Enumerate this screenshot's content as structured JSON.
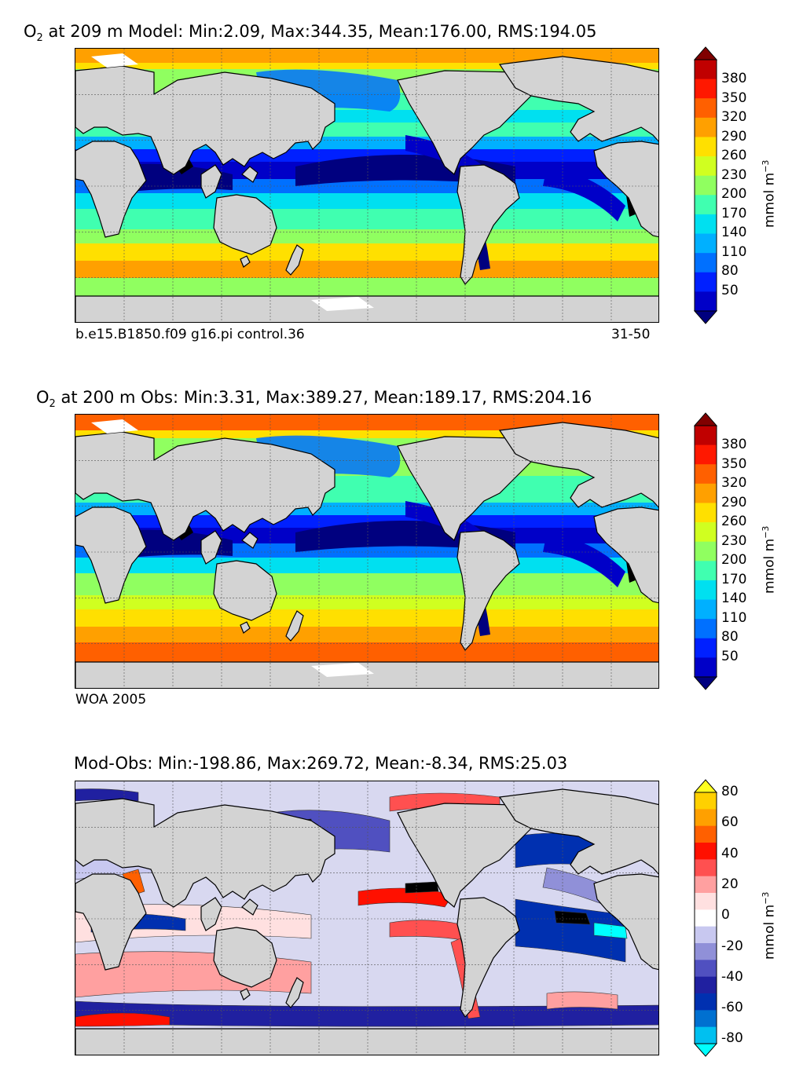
{
  "panels": [
    {
      "title_prefix": "O",
      "title_sub": "2",
      "title_rest": " at 209 m Model: Min:2.09, Max:344.35, Mean:176.00, RMS:194.05",
      "caption_left": "b.e15.B1850.f09 g16.pi control.36",
      "caption_right": "31-50",
      "colorbar_ticks": [
        "380",
        "350",
        "320",
        "290",
        "260",
        "230",
        "200",
        "170",
        "140",
        "110",
        "80",
        "50"
      ],
      "colorbar_unit": "mmol m",
      "colorbar_unit_sup": "−3"
    },
    {
      "title_prefix": "O",
      "title_sub": "2",
      "title_rest": " at 200 m Obs: Min:3.31, Max:389.27, Mean:189.17, RMS:204.16",
      "caption_left": "WOA 2005",
      "caption_right": "",
      "colorbar_ticks": [
        "380",
        "350",
        "320",
        "290",
        "260",
        "230",
        "200",
        "170",
        "140",
        "110",
        "80",
        "50"
      ],
      "colorbar_unit": "mmol m",
      "colorbar_unit_sup": "−3"
    },
    {
      "title_prefix": "",
      "title_sub": "",
      "title_rest": "Mod-Obs: Min:-198.86, Max:269.72, Mean:-8.34, RMS:25.03",
      "caption_left": "",
      "caption_right": "",
      "colorbar_ticks": [
        "80",
        "60",
        "40",
        "20",
        "0",
        "-20",
        "-40",
        "-60",
        "-80"
      ],
      "colorbar_unit": "mmol m",
      "colorbar_unit_sup": "−3"
    }
  ],
  "colors": {
    "land": "#d3d3d3",
    "o2_scale": [
      "#00007f",
      "#0000c8",
      "#0020ff",
      "#0070ff",
      "#00b0ff",
      "#00e0f0",
      "#40ffb0",
      "#90ff60",
      "#d0ff20",
      "#ffe000",
      "#ffa000",
      "#ff6000",
      "#ff1800",
      "#c00000",
      "#800000"
    ],
    "diff_scale": [
      "#00ffff",
      "#00c0f0",
      "#0070d0",
      "#0030b0",
      "#2020a0",
      "#5050c0",
      "#9090d8",
      "#c8c8f0",
      "#ffffff",
      "#ffe0e0",
      "#ffa0a0",
      "#ff5050",
      "#ff1000",
      "#ff6000",
      "#ffa000",
      "#ffd000",
      "#ffff20"
    ]
  }
}
